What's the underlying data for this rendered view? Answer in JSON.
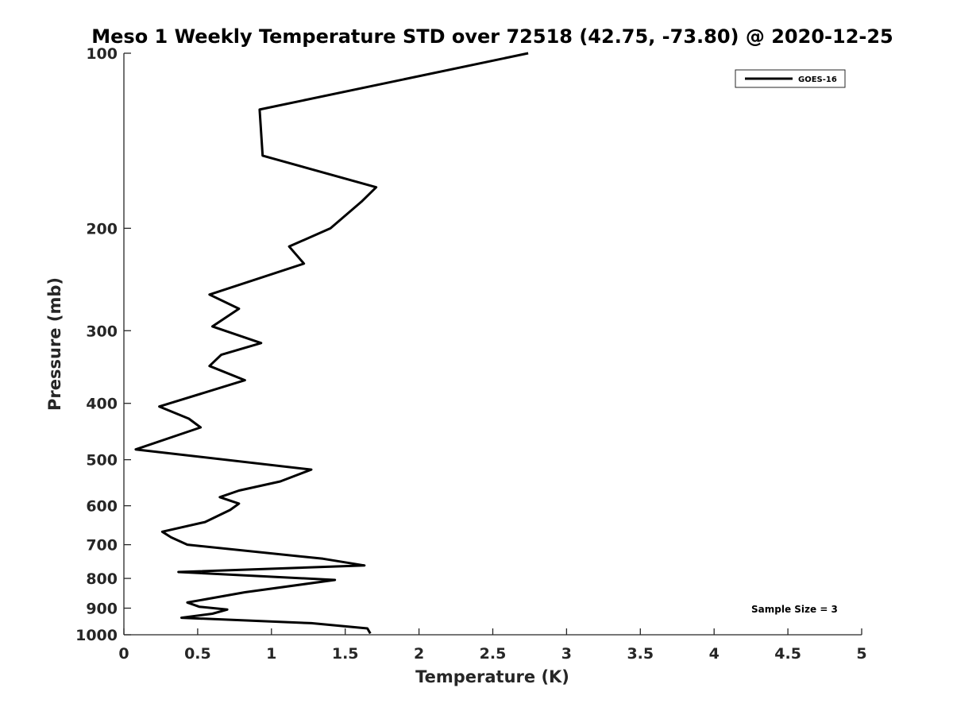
{
  "chart_data": {
    "type": "line",
    "title": "Meso 1 Weekly Temperature STD over 72518 (42.75, -73.80) @ 2020-12-25",
    "xlabel": "Temperature (K)",
    "ylabel": "Pressure (mb)",
    "xlim": [
      0,
      5
    ],
    "ylim": [
      100,
      1000
    ],
    "yscale": "log",
    "ydirection": "reverse",
    "grid": false,
    "x_ticks": [
      0,
      0.5,
      1,
      1.5,
      2,
      2.5,
      3,
      3.5,
      4,
      4.5,
      5
    ],
    "x_tick_labels": [
      "0",
      "0.5",
      "1",
      "1.5",
      "2",
      "2.5",
      "3",
      "3.5",
      "4",
      "4.5",
      "5"
    ],
    "y_ticks": [
      100,
      200,
      300,
      400,
      500,
      600,
      700,
      800,
      900,
      1000
    ],
    "y_tick_labels": [
      "100",
      "200",
      "300",
      "400",
      "500",
      "600",
      "700",
      "800",
      "900",
      "1000"
    ],
    "legend": {
      "position": "top-right",
      "entries": [
        "GOES-16"
      ]
    },
    "annotation": "Sample Size = 3",
    "series": [
      {
        "name": "GOES-16",
        "color": "#000000",
        "points": [
          [
            2.74,
            100
          ],
          [
            0.92,
            125
          ],
          [
            0.94,
            150
          ],
          [
            1.71,
            170
          ],
          [
            1.61,
            180
          ],
          [
            1.4,
            200
          ],
          [
            1.12,
            215
          ],
          [
            1.22,
            230
          ],
          [
            0.58,
            260
          ],
          [
            0.78,
            275
          ],
          [
            0.6,
            295
          ],
          [
            0.93,
            315
          ],
          [
            0.66,
            330
          ],
          [
            0.58,
            345
          ],
          [
            0.82,
            365
          ],
          [
            0.24,
            405
          ],
          [
            0.44,
            425
          ],
          [
            0.52,
            440
          ],
          [
            0.08,
            480
          ],
          [
            1.27,
            520
          ],
          [
            1.06,
            545
          ],
          [
            0.78,
            565
          ],
          [
            0.65,
            580
          ],
          [
            0.78,
            595
          ],
          [
            0.72,
            610
          ],
          [
            0.55,
            640
          ],
          [
            0.26,
            665
          ],
          [
            0.32,
            680
          ],
          [
            0.43,
            700
          ],
          [
            1.35,
            740
          ],
          [
            1.63,
            760
          ],
          [
            0.37,
            780
          ],
          [
            1.43,
            805
          ],
          [
            0.82,
            845
          ],
          [
            0.43,
            880
          ],
          [
            0.51,
            895
          ],
          [
            0.7,
            905
          ],
          [
            0.6,
            920
          ],
          [
            0.39,
            935
          ],
          [
            1.27,
            955
          ],
          [
            1.65,
            975
          ],
          [
            1.67,
            995
          ]
        ]
      }
    ]
  }
}
